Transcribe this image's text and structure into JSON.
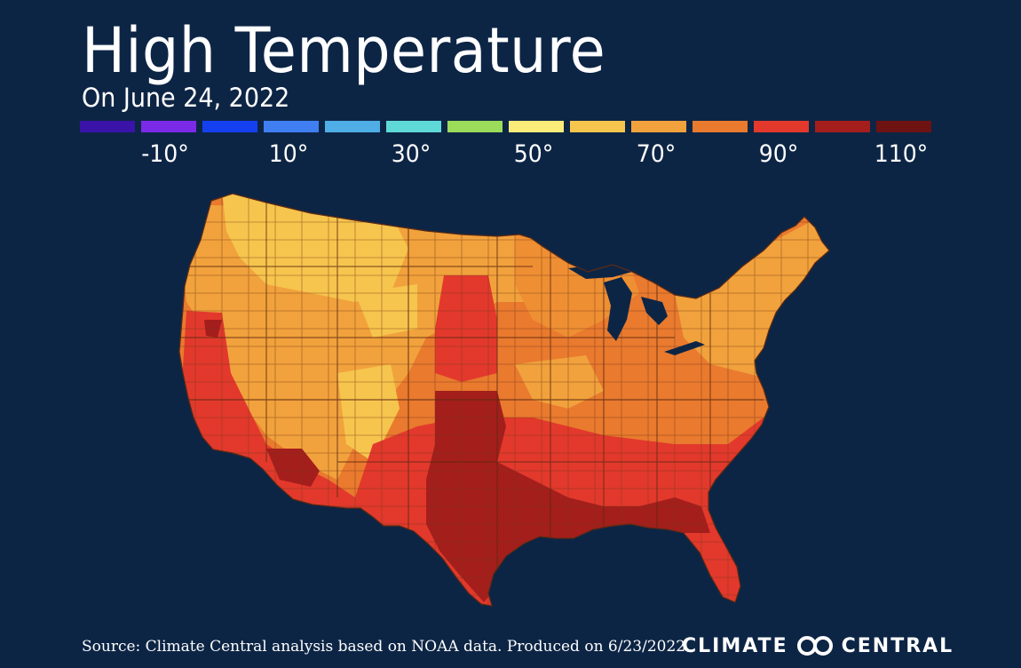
{
  "header": {
    "title": "High Temperature",
    "subtitle": "On June 24, 2022"
  },
  "legend": {
    "colors": [
      "#3a13a8",
      "#7b2be8",
      "#1540f0",
      "#3f7ff2",
      "#4faee5",
      "#5fd8d8",
      "#9bdc5a",
      "#fbec7a",
      "#f6c54d",
      "#f1a23c",
      "#e97a2e",
      "#e2392c",
      "#a41e1c",
      "#6e1212"
    ],
    "labels": [
      "-10°",
      "10°",
      "30°",
      "50°",
      "70°",
      "90°",
      "110°"
    ]
  },
  "map": {
    "colors": {
      "band_60_70": "#f6c54d",
      "band_70_80": "#f1a23c",
      "band_80_90": "#e97a2e",
      "band_90_100": "#e2392c",
      "band_100_110": "#a41e1c",
      "water": "#0d2545",
      "borders": "#7a3a1a"
    }
  },
  "footer": {
    "source": "Source: Climate Central analysis based on NOAA data. Produced on 6/23/2022.",
    "brand_left": "CLIMATE",
    "brand_right": "CENTRAL",
    "brand_logo": "climate-central-logo-icon"
  }
}
